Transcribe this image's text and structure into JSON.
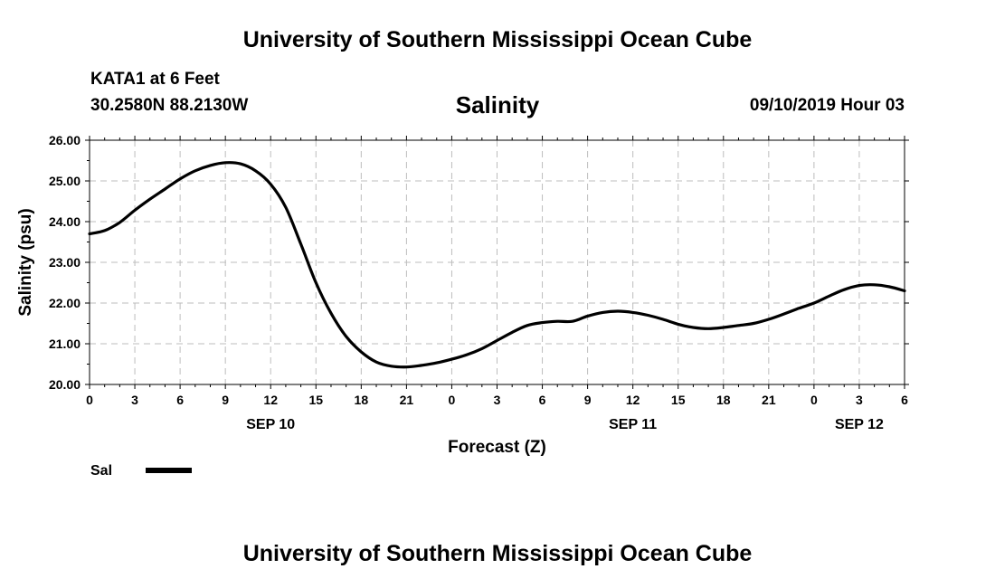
{
  "header": {
    "title_top": "University of Southern Mississippi Ocean Cube",
    "station": "KATA1 at 6 Feet",
    "coords": "30.2580N 88.2130W",
    "variable": "Salinity",
    "datetime": "09/10/2019 Hour 03",
    "title_bottom": "University of Southern Mississippi Ocean Cube"
  },
  "chart_data": {
    "type": "line",
    "title": "Salinity",
    "xlabel": "Forecast (Z)",
    "ylabel": "Salinity (psu)",
    "ylim": [
      20.0,
      26.0
    ],
    "y_ticks": [
      "20.00",
      "21.00",
      "22.00",
      "23.00",
      "24.00",
      "25.00",
      "26.00"
    ],
    "x_tick_labels": [
      "0",
      "3",
      "6",
      "9",
      "12",
      "15",
      "18",
      "21",
      "0",
      "3",
      "6",
      "9",
      "12",
      "15",
      "18",
      "21",
      "0",
      "3",
      "6"
    ],
    "day_labels": [
      {
        "label": "SEP 10",
        "hour": 12
      },
      {
        "label": "SEP 11",
        "hour": 36
      },
      {
        "label": "SEP 12",
        "hour": 51
      }
    ],
    "grid": true,
    "legend": {
      "position": "bottom-left",
      "entries": [
        {
          "name": "Sal",
          "color": "#000000"
        }
      ]
    },
    "series": [
      {
        "name": "Sal",
        "x": [
          0,
          1,
          2,
          3,
          4,
          5,
          6,
          7,
          8,
          9,
          10,
          11,
          12,
          13,
          14,
          15,
          16,
          17,
          18,
          19,
          20,
          21,
          22,
          23,
          24,
          25,
          26,
          27,
          28,
          29,
          30,
          31,
          32,
          33,
          34,
          35,
          36,
          37,
          38,
          39,
          40,
          41,
          42,
          43,
          44,
          45,
          46,
          47,
          48,
          49,
          50,
          51,
          52,
          53,
          54
        ],
        "values": [
          23.7,
          23.78,
          23.98,
          24.28,
          24.55,
          24.8,
          25.05,
          25.25,
          25.38,
          25.45,
          25.42,
          25.25,
          24.92,
          24.35,
          23.45,
          22.5,
          21.75,
          21.18,
          20.8,
          20.55,
          20.45,
          20.43,
          20.47,
          20.53,
          20.62,
          20.73,
          20.88,
          21.08,
          21.28,
          21.45,
          21.52,
          21.55,
          21.55,
          21.68,
          21.77,
          21.8,
          21.77,
          21.7,
          21.6,
          21.48,
          21.4,
          21.37,
          21.4,
          21.45,
          21.5,
          21.6,
          21.73,
          21.87,
          22.0,
          22.17,
          22.33,
          22.43,
          22.45,
          22.4,
          22.3
        ]
      }
    ]
  }
}
